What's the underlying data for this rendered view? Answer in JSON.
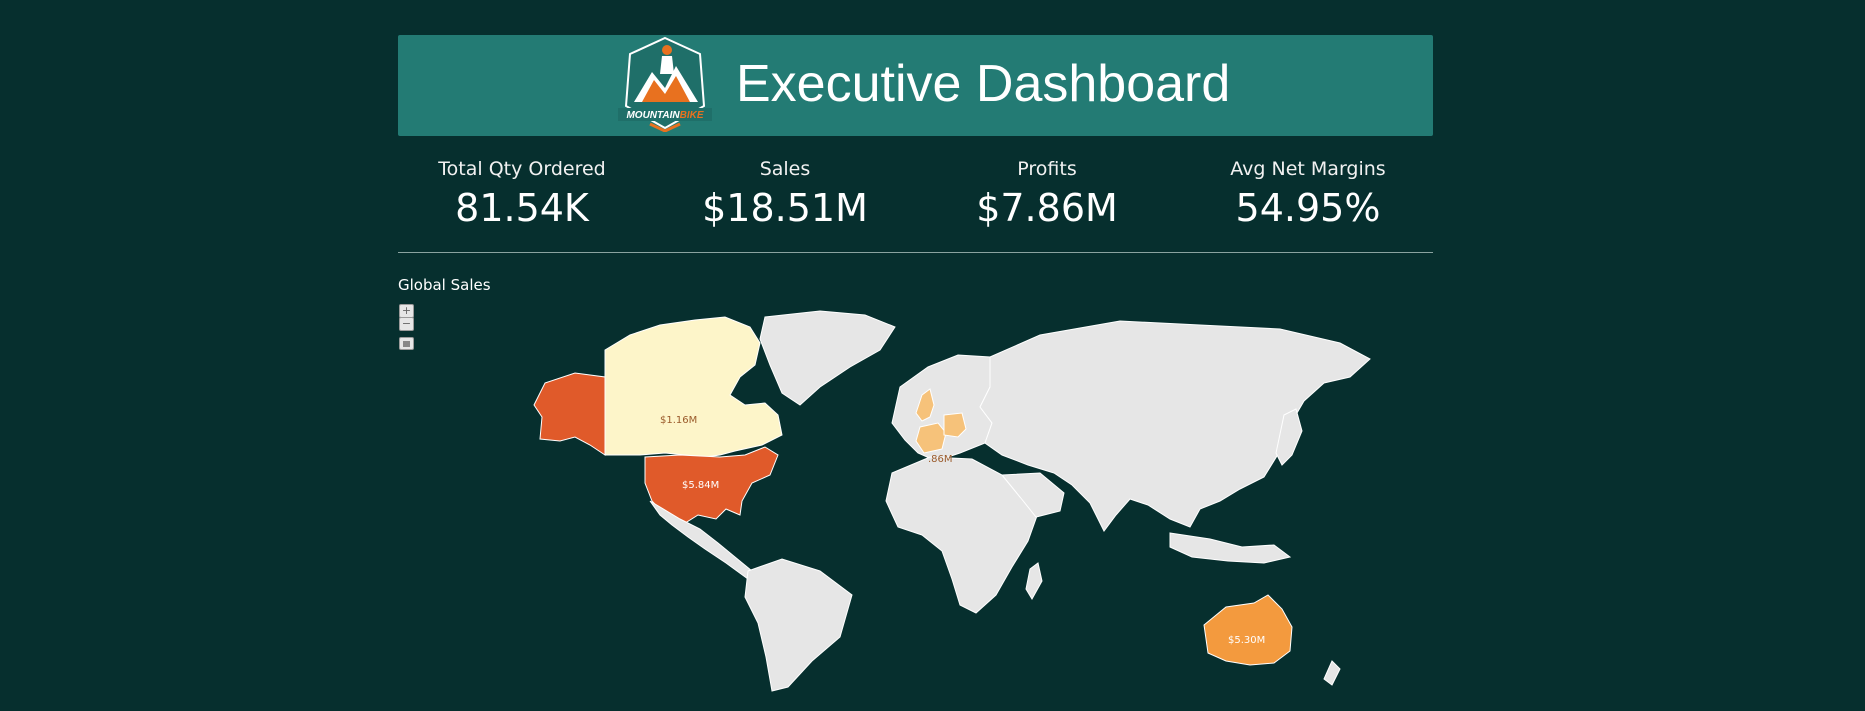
{
  "header": {
    "title": "Executive Dashboard",
    "logo_text_1": "MOUNTAIN",
    "logo_text_2": "BIKE"
  },
  "kpis": [
    {
      "label": "Total Qty Ordered",
      "value": "81.54K"
    },
    {
      "label": "Sales",
      "value": "$18.51M"
    },
    {
      "label": "Profits",
      "value": "$7.86M"
    },
    {
      "label": "Avg Net Margins",
      "value": "54.95%"
    }
  ],
  "map": {
    "title": "Global Sales",
    "zoom_in_label": "+",
    "zoom_out_label": "−",
    "labels": {
      "canada": "$1.16M",
      "usa": "$5.84M",
      "europe": ".86M",
      "australia": "$5.30M"
    }
  },
  "colors": {
    "background": "#062f2e",
    "banner": "#237b74",
    "usa": "#e05a2a",
    "alaska": "#e05a2a",
    "australia": "#f39a3e",
    "canada": "#fdf5c9",
    "europe_highlight": "#f6c27a",
    "land": "#e6e6e6"
  }
}
